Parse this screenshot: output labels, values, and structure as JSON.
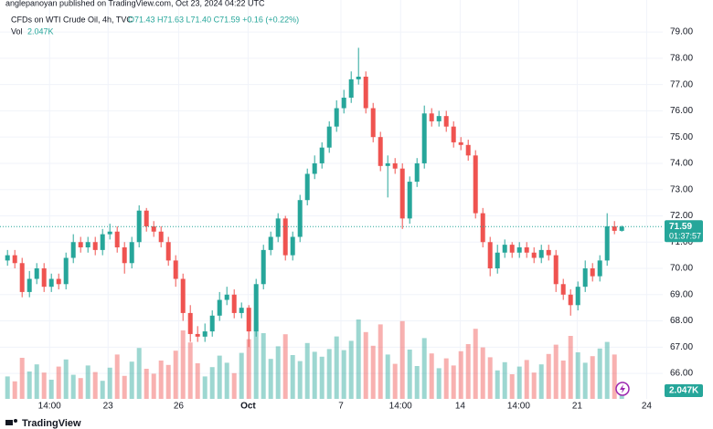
{
  "header": {
    "published": "anglepanoyan published on TradingView.com, Oct 23, 2024 04:22 UTC",
    "brand": "TradingView"
  },
  "chart_data": {
    "type": "candlestick",
    "legend": {
      "symbol": "CFDs on WTI Crude Oil, 4h, TVC",
      "ohlc": "O71.43 H71.63 L71.40 C71.59 +0.16 (+0.22%)",
      "volume_name": "Vol",
      "volume_value": "2.047K"
    },
    "up_color": "#26a69a",
    "down_color": "#ef5350",
    "series": [
      {
        "open": [
          70.3,
          70.5,
          70.2,
          69.1,
          69.6,
          70.0,
          69.3,
          69.6,
          69.4,
          70.4,
          71.0,
          70.8,
          71.0,
          70.7,
          71.3,
          71.4,
          70.8,
          70.2,
          71.0,
          72.2,
          71.6,
          71.4,
          71.0,
          70.3,
          69.6,
          68.3,
          67.5,
          67.4,
          67.6,
          68.2,
          68.8,
          69.0,
          68.3,
          68.5,
          67.6,
          69.4,
          70.7,
          71.2,
          71.9,
          70.5,
          71.2,
          72.6,
          73.6,
          74.0,
          74.6,
          75.4,
          76.1,
          76.5,
          77.2,
          77.3,
          76.1,
          75.0,
          73.9,
          74.0,
          73.8,
          71.9,
          73.3,
          74.0,
          75.9,
          75.6,
          75.8,
          75.4,
          74.8,
          74.7,
          74.3,
          72.1,
          71.0,
          70.0,
          70.6,
          70.9,
          70.6,
          70.8,
          70.6,
          70.4,
          70.7,
          70.5,
          69.4,
          69.0,
          68.6,
          69.3,
          70.0,
          69.7,
          70.3,
          71.6,
          71.43
        ],
        "high": [
          70.7,
          70.7,
          70.4,
          69.9,
          70.2,
          70.2,
          69.8,
          69.8,
          70.6,
          71.3,
          71.2,
          71.2,
          71.2,
          71.5,
          71.7,
          71.6,
          71.0,
          71.2,
          72.4,
          72.3,
          71.8,
          71.6,
          71.2,
          70.5,
          69.8,
          68.6,
          67.8,
          67.9,
          68.4,
          69.1,
          69.3,
          69.2,
          68.7,
          68.6,
          69.6,
          70.9,
          71.4,
          72.1,
          72.0,
          71.4,
          72.8,
          73.8,
          74.3,
          74.8,
          75.6,
          76.4,
          76.8,
          77.5,
          78.4,
          77.5,
          76.3,
          75.2,
          74.3,
          74.2,
          74.0,
          73.5,
          74.2,
          76.2,
          76.1,
          76.0,
          76.0,
          75.6,
          75.0,
          74.9,
          74.5,
          72.3,
          71.2,
          70.9,
          71.1,
          71.0,
          71.0,
          71.0,
          70.8,
          70.9,
          70.9,
          70.7,
          69.6,
          69.2,
          69.5,
          70.3,
          70.2,
          70.5,
          72.1,
          71.8,
          71.63
        ],
        "low": [
          70.1,
          70.0,
          68.9,
          68.9,
          69.4,
          69.1,
          69.1,
          69.2,
          69.2,
          70.2,
          70.6,
          70.6,
          70.5,
          70.5,
          71.1,
          70.6,
          69.8,
          70.0,
          70.8,
          71.4,
          71.2,
          70.8,
          70.1,
          69.3,
          68.0,
          67.2,
          67.2,
          67.2,
          67.4,
          68.0,
          68.6,
          68.1,
          68.1,
          67.0,
          67.4,
          69.2,
          70.5,
          71.0,
          70.3,
          70.3,
          71.0,
          72.4,
          73.4,
          73.8,
          74.4,
          75.2,
          75.9,
          76.3,
          77.0,
          75.9,
          74.8,
          73.7,
          72.7,
          73.6,
          71.5,
          71.7,
          73.1,
          73.8,
          75.4,
          75.4,
          75.2,
          74.6,
          74.5,
          74.1,
          71.9,
          70.8,
          69.7,
          69.8,
          70.4,
          70.4,
          70.4,
          70.4,
          70.2,
          70.2,
          70.3,
          69.1,
          68.8,
          68.2,
          68.4,
          69.1,
          69.5,
          69.5,
          70.1,
          71.3,
          71.4
        ],
        "close": [
          70.5,
          70.2,
          69.1,
          69.6,
          70.0,
          69.3,
          69.6,
          69.4,
          70.4,
          71.0,
          70.8,
          71.0,
          70.7,
          71.3,
          71.4,
          70.8,
          70.2,
          71.0,
          72.2,
          71.6,
          71.4,
          71.0,
          70.3,
          69.6,
          68.3,
          67.5,
          67.4,
          67.6,
          68.2,
          68.8,
          69.0,
          68.3,
          68.5,
          67.6,
          69.4,
          70.7,
          71.2,
          71.9,
          70.5,
          71.2,
          72.6,
          73.6,
          74.0,
          74.6,
          75.4,
          76.1,
          76.5,
          77.2,
          77.3,
          76.1,
          75.0,
          73.9,
          74.0,
          73.8,
          71.9,
          73.3,
          74.0,
          75.9,
          75.6,
          75.8,
          75.4,
          74.8,
          74.7,
          74.3,
          72.1,
          71.0,
          70.0,
          70.6,
          70.9,
          70.6,
          70.8,
          70.6,
          70.4,
          70.7,
          70.5,
          69.4,
          69.0,
          68.6,
          69.3,
          70.0,
          69.7,
          70.3,
          71.6,
          71.43,
          71.59
        ]
      }
    ],
    "volume": [
      4.1,
      3.2,
      7.5,
      5.0,
      6.3,
      4.8,
      3.5,
      5.9,
      7.2,
      4.4,
      3.8,
      6.1,
      4.9,
      3.3,
      5.7,
      8.1,
      4.2,
      6.8,
      9.3,
      5.5,
      4.6,
      7.0,
      6.2,
      8.8,
      12.5,
      10.3,
      6.5,
      4.1,
      5.8,
      7.9,
      6.6,
      4.7,
      8.4,
      10.9,
      14.1,
      12.0,
      7.3,
      9.6,
      11.8,
      8.0,
      6.9,
      10.2,
      8.6,
      7.7,
      9.1,
      11.4,
      8.9,
      10.6,
      14.5,
      12.2,
      9.7,
      13.6,
      8.1,
      6.4,
      14.2,
      9.0,
      6.0,
      11.1,
      8.3,
      5.6,
      7.4,
      6.1,
      8.7,
      10.0,
      12.8,
      9.4,
      7.6,
      5.2,
      6.7,
      4.5,
      5.9,
      7.1,
      4.8,
      6.3,
      8.2,
      9.9,
      7.0,
      11.5,
      8.5,
      6.6,
      7.8,
      9.2,
      10.4,
      8.1,
      2.047
    ],
    "last_value_label": "71.59",
    "countdown": "01:37:57",
    "xlim": [
      -0.4,
      89.6
    ],
    "xticks": [
      {
        "value": 5.75,
        "label": "14:00"
      },
      {
        "value": 13.75,
        "label": "23"
      },
      {
        "value": 23.4,
        "label": "26"
      },
      {
        "value": 32.9,
        "label": "Oct"
      },
      {
        "value": 45.6,
        "label": "7"
      },
      {
        "value": 53.75,
        "label": "14:00"
      },
      {
        "value": 61.9,
        "label": "14"
      },
      {
        "value": 69.9,
        "label": "14:00"
      },
      {
        "value": 77.9,
        "label": "21"
      },
      {
        "value": 87.4,
        "label": "24"
      }
    ],
    "ylim": [
      65.03,
      80.22
    ],
    "yticks": [
      {
        "value": 66,
        "label": "66.00"
      },
      {
        "value": 67,
        "label": "67.00"
      },
      {
        "value": 68,
        "label": "68.00"
      },
      {
        "value": 69,
        "label": "69.00"
      },
      {
        "value": 70,
        "label": "70.00"
      },
      {
        "value": 71,
        "label": "71.00"
      },
      {
        "value": 72,
        "label": "72.00"
      },
      {
        "value": 73,
        "label": "73.00"
      },
      {
        "value": 74,
        "label": "74.00"
      },
      {
        "value": 75,
        "label": "75.00"
      },
      {
        "value": 76,
        "label": "76.00"
      },
      {
        "value": 77,
        "label": "77.00"
      },
      {
        "value": 78,
        "label": "78.00"
      },
      {
        "value": 79,
        "label": "79.00"
      }
    ],
    "vlim": [
      0,
      25
    ],
    "grid": true
  }
}
